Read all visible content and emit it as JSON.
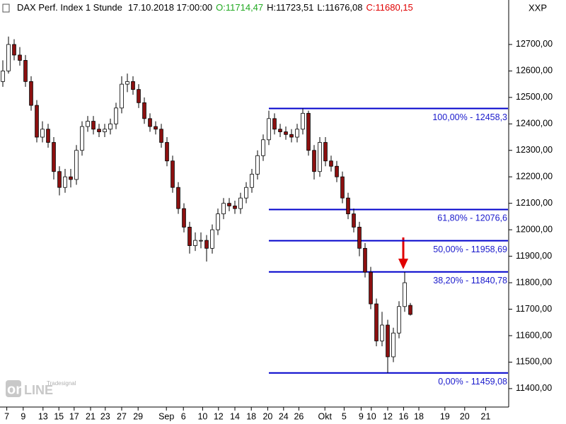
{
  "chart_data": {
    "type": "candlestick",
    "title": "DAX Perf. Index 1 Stunde",
    "timestamp": "17.10.2018 17:00:00",
    "ohlc_labels": [
      "O:11714,47",
      "H:11723,51",
      "L:11676,08",
      "C:11680,15"
    ],
    "ohlc_colors": [
      "#22aa22",
      "#000000",
      "#000000",
      "#e00000"
    ],
    "axis_label": "XXP",
    "up_color": "#ffffff",
    "down_color": "#8b1010",
    "x": [
      0,
      1,
      2,
      3,
      4,
      5,
      6,
      7,
      8,
      9,
      10,
      11,
      12,
      13,
      14,
      15,
      16,
      17,
      18,
      19,
      20,
      21,
      22,
      23,
      24,
      25,
      26,
      27,
      28,
      29,
      30,
      31,
      32,
      33,
      34,
      35,
      36,
      37,
      38,
      39,
      40,
      41,
      42,
      43,
      44,
      45,
      46,
      47,
      48,
      49,
      50,
      51,
      52,
      53,
      54,
      55,
      56,
      57,
      58,
      59,
      60,
      61,
      62,
      63,
      64,
      65,
      66,
      67,
      68,
      69,
      70,
      71,
      72
    ],
    "open": [
      12560,
      12600,
      12700,
      12660,
      12640,
      12560,
      12470,
      12350,
      12380,
      12330,
      12220,
      12160,
      12200,
      12190,
      12300,
      12390,
      12410,
      12380,
      12370,
      12380,
      12400,
      12460,
      12550,
      12560,
      12530,
      12480,
      12420,
      12390,
      12380,
      12330,
      12260,
      12160,
      12080,
      12010,
      11940,
      11960,
      11960,
      11930,
      12000,
      12060,
      12100,
      12090,
      12080,
      12120,
      12160,
      12210,
      12280,
      12340,
      12420,
      12380,
      12370,
      12360,
      12350,
      12380,
      12440,
      12300,
      12220,
      12330,
      12260,
      12240,
      12200,
      12120,
      12060,
      12010,
      11930,
      11840,
      11720,
      11580,
      11640,
      11520,
      11610,
      11710,
      11714.47
    ],
    "high": [
      12640,
      12730,
      12720,
      12690,
      12660,
      12580,
      12490,
      12410,
      12400,
      12350,
      12240,
      12230,
      12230,
      12320,
      12410,
      12430,
      12430,
      12400,
      12400,
      12420,
      12480,
      12580,
      12590,
      12580,
      12550,
      12500,
      12440,
      12410,
      12400,
      12350,
      12280,
      12180,
      12100,
      12030,
      11990,
      11990,
      11980,
      12020,
      12080,
      12120,
      12120,
      12110,
      12140,
      12180,
      12230,
      12300,
      12360,
      12450,
      12440,
      12400,
      12390,
      12380,
      12400,
      12458.3,
      12450,
      12320,
      12350,
      12350,
      12280,
      12260,
      12220,
      12140,
      12080,
      12030,
      11950,
      11860,
      11740,
      11690,
      11660,
      11630,
      11730,
      11840.78,
      11723.51
    ],
    "low": [
      12540,
      12590,
      12640,
      12620,
      12540,
      12450,
      12330,
      12330,
      12310,
      12190,
      12130,
      12140,
      12160,
      12170,
      12280,
      12370,
      12360,
      12350,
      12350,
      12360,
      12380,
      12440,
      12520,
      12510,
      12460,
      12400,
      12370,
      12360,
      12310,
      12240,
      12140,
      12060,
      11990,
      11910,
      11920,
      11930,
      11880,
      11910,
      11980,
      12040,
      12070,
      12060,
      12060,
      12100,
      12140,
      12190,
      12260,
      12320,
      12360,
      12350,
      12340,
      12330,
      12330,
      12360,
      12280,
      12190,
      12200,
      12240,
      12220,
      12180,
      12100,
      12040,
      11990,
      11900,
      11820,
      11700,
      11560,
      11560,
      11459.08,
      11500,
      11590,
      11690,
      11676.08
    ],
    "close": [
      12600,
      12700,
      12660,
      12640,
      12560,
      12470,
      12350,
      12380,
      12330,
      12220,
      12160,
      12200,
      12190,
      12300,
      12390,
      12410,
      12380,
      12370,
      12380,
      12400,
      12460,
      12550,
      12560,
      12530,
      12480,
      12420,
      12390,
      12380,
      12330,
      12260,
      12160,
      12080,
      12010,
      11940,
      11960,
      11960,
      11930,
      12000,
      12060,
      12100,
      12090,
      12080,
      12120,
      12160,
      12210,
      12280,
      12340,
      12420,
      12380,
      12370,
      12360,
      12350,
      12380,
      12440,
      12300,
      12220,
      12330,
      12260,
      12240,
      12200,
      12120,
      12060,
      12010,
      11930,
      11840,
      11720,
      11580,
      11640,
      11520,
      11610,
      11710,
      11800,
      11680.15
    ],
    "xlim": [
      0,
      90
    ],
    "xticks": [
      {
        "value": 1.2,
        "label": "7"
      },
      {
        "value": 4.1,
        "label": "9"
      },
      {
        "value": 7.6,
        "label": "13"
      },
      {
        "value": 10.4,
        "label": "15"
      },
      {
        "value": 13.1,
        "label": "17"
      },
      {
        "value": 16,
        "label": "21"
      },
      {
        "value": 18.6,
        "label": "23"
      },
      {
        "value": 21.5,
        "label": "27"
      },
      {
        "value": 24.4,
        "label": "29"
      },
      {
        "value": 29.4,
        "label": "Sep"
      },
      {
        "value": 32.4,
        "label": "6"
      },
      {
        "value": 35.8,
        "label": "10"
      },
      {
        "value": 38.6,
        "label": "12"
      },
      {
        "value": 41.5,
        "label": "14"
      },
      {
        "value": 44.4,
        "label": "18"
      },
      {
        "value": 47.3,
        "label": "20"
      },
      {
        "value": 50.1,
        "label": "24"
      },
      {
        "value": 52.8,
        "label": "26"
      },
      {
        "value": 57.4,
        "label": "Okt"
      },
      {
        "value": 60.8,
        "label": "5"
      },
      {
        "value": 63.8,
        "label": "9"
      },
      {
        "value": 65.6,
        "label": "10"
      },
      {
        "value": 68.5,
        "label": "12"
      },
      {
        "value": 71.3,
        "label": "16"
      },
      {
        "value": 74,
        "label": "18"
      },
      {
        "value": 78.6,
        "label": "19"
      },
      {
        "value": 82.1,
        "label": "20"
      },
      {
        "value": 85.8,
        "label": "21"
      }
    ],
    "ylim": [
      11333,
      12868
    ],
    "yticks": [
      {
        "value": 11400,
        "label": "11400,00"
      },
      {
        "value": 11500,
        "label": "11500,00"
      },
      {
        "value": 11600,
        "label": "11600,00"
      },
      {
        "value": 11700,
        "label": "11700,00"
      },
      {
        "value": 11800,
        "label": "11800,00"
      },
      {
        "value": 11900,
        "label": "11900,00"
      },
      {
        "value": 12000,
        "label": "12000,00"
      },
      {
        "value": 12100,
        "label": "12100,00"
      },
      {
        "value": 12200,
        "label": "12200,00"
      },
      {
        "value": 12300,
        "label": "12300,00"
      },
      {
        "value": 12400,
        "label": "12400,00"
      },
      {
        "value": 12500,
        "label": "12500,00"
      },
      {
        "value": 12600,
        "label": "12600,00"
      },
      {
        "value": 12700,
        "label": "12700,00"
      }
    ],
    "fib_color": "#0000cc",
    "fib_levels": [
      {
        "value": 12458.3,
        "label": "100,00% - 12458,3"
      },
      {
        "value": 12076.6,
        "label": "61,80% - 12076,6"
      },
      {
        "value": 11958.69,
        "label": "50,00% - 11958,69"
      },
      {
        "value": 11840.78,
        "label": "38,20% - 11840,78"
      },
      {
        "value": 11459.08,
        "label": "0,00% - 11459,08"
      }
    ]
  }
}
